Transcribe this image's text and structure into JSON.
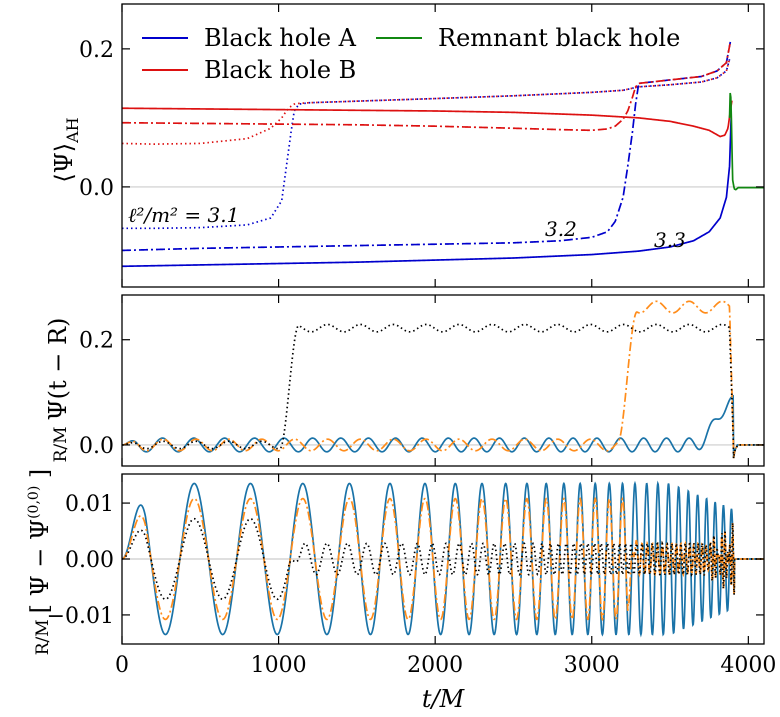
{
  "chart_data": [
    {
      "panel": "top",
      "type": "line",
      "ylabel": "⟨Ψ⟩_AH",
      "ylim": [
        -0.145,
        0.265
      ],
      "xlim": [
        0,
        4100
      ],
      "yticks": [
        0.0,
        0.2
      ],
      "ytick_labels": [
        "0.0",
        "0.2"
      ],
      "legend": {
        "placement": "top-left",
        "entries": [
          {
            "name": "Black hole A",
            "color": "#0000cc"
          },
          {
            "name": "Black hole B",
            "color": "#dd1111"
          },
          {
            "name": "Remnant black hole",
            "color": "#118811"
          }
        ]
      },
      "annotations": [
        "ℓ²/m² = 3.1",
        "3.2",
        "3.3"
      ],
      "series": [
        {
          "name": "A, ℓ²/m²=3.1",
          "style": "dotted",
          "color": "#0000cc",
          "x": [
            0,
            200,
            500,
            800,
            950,
            1020,
            1050,
            1080,
            1100,
            1130,
            1200,
            1600,
            2000,
            2500,
            3000,
            3200,
            3300,
            3500,
            3700,
            3800,
            3860,
            3880
          ],
          "y": [
            -0.06,
            -0.06,
            -0.059,
            -0.055,
            -0.045,
            -0.02,
            0.03,
            0.08,
            0.11,
            0.12,
            0.122,
            0.125,
            0.128,
            0.132,
            0.137,
            0.14,
            0.145,
            0.148,
            0.152,
            0.158,
            0.168,
            0.185
          ]
        },
        {
          "name": "B, ℓ²/m²=3.1",
          "style": "dotted",
          "color": "#dd1111",
          "x": [
            0,
            200,
            500,
            800,
            950,
            1020,
            1050,
            1080,
            1100,
            1130,
            1200,
            1600,
            2000,
            2500,
            3000,
            3200,
            3300,
            3500,
            3700,
            3800,
            3860,
            3880
          ],
          "y": [
            0.063,
            0.062,
            0.063,
            0.07,
            0.085,
            0.1,
            0.11,
            0.117,
            0.12,
            0.121,
            0.122,
            0.125,
            0.128,
            0.132,
            0.137,
            0.14,
            0.145,
            0.148,
            0.152,
            0.158,
            0.168,
            0.185
          ]
        },
        {
          "name": "A, ℓ²/m²=3.2",
          "style": "dashdot",
          "color": "#0000cc",
          "x": [
            0,
            500,
            1000,
            1500,
            2000,
            2500,
            2800,
            3000,
            3100,
            3150,
            3200,
            3230,
            3260,
            3280,
            3300,
            3500,
            3700,
            3800,
            3860,
            3885
          ],
          "y": [
            -0.092,
            -0.089,
            -0.087,
            -0.085,
            -0.083,
            -0.081,
            -0.078,
            -0.073,
            -0.065,
            -0.05,
            -0.015,
            0.03,
            0.08,
            0.12,
            0.15,
            0.155,
            0.16,
            0.168,
            0.18,
            0.21
          ]
        },
        {
          "name": "B, ℓ²/m²=3.2",
          "style": "dashdot",
          "color": "#dd1111",
          "x": [
            0,
            500,
            1000,
            1500,
            2000,
            2500,
            2800,
            3000,
            3100,
            3150,
            3200,
            3230,
            3260,
            3280,
            3300,
            3500,
            3700,
            3800,
            3860,
            3885
          ],
          "y": [
            0.093,
            0.092,
            0.091,
            0.09,
            0.088,
            0.085,
            0.083,
            0.082,
            0.084,
            0.088,
            0.098,
            0.11,
            0.13,
            0.145,
            0.15,
            0.155,
            0.16,
            0.168,
            0.18,
            0.21
          ]
        },
        {
          "name": "A, ℓ²/m²=3.3",
          "style": "solid",
          "color": "#0000cc",
          "x": [
            0,
            500,
            1000,
            1500,
            2000,
            2500,
            3000,
            3300,
            3500,
            3650,
            3750,
            3820,
            3860,
            3880,
            3890
          ],
          "y": [
            -0.115,
            -0.113,
            -0.111,
            -0.109,
            -0.106,
            -0.103,
            -0.098,
            -0.093,
            -0.087,
            -0.078,
            -0.065,
            -0.045,
            -0.015,
            0.03,
            0.1
          ]
        },
        {
          "name": "B, ℓ²/m²=3.3",
          "style": "solid",
          "color": "#dd1111",
          "x": [
            0,
            500,
            1000,
            1500,
            2000,
            2500,
            3000,
            3300,
            3500,
            3650,
            3750,
            3820,
            3850,
            3870,
            3885,
            3895
          ],
          "y": [
            0.114,
            0.113,
            0.112,
            0.111,
            0.11,
            0.108,
            0.104,
            0.1,
            0.095,
            0.088,
            0.082,
            0.073,
            0.075,
            0.085,
            0.11,
            0.125
          ]
        },
        {
          "name": "Remnant",
          "style": "solid",
          "color": "#118811",
          "x": [
            3880,
            3885,
            3890,
            3895,
            3900,
            3910,
            3920,
            3935,
            3950,
            4000,
            4100
          ],
          "y": [
            0.1,
            0.145,
            0.12,
            0.06,
            0.01,
            -0.003,
            -0.004,
            -0.001,
            -0.001,
            -0.001,
            -0.001
          ]
        }
      ]
    },
    {
      "panel": "middle",
      "type": "line",
      "ylabel": "(R/M) Ψ(t − R)",
      "ylim": [
        -0.04,
        0.285
      ],
      "xlim": [
        0,
        4100
      ],
      "yticks": [
        0.0,
        0.2
      ],
      "ytick_labels": [
        "0.0",
        "0.2"
      ],
      "series": [
        {
          "name": "ℓ²/m²=3.3",
          "style": "solid",
          "color": "#1a73a8",
          "kind": "osc",
          "amp": 0.013,
          "period": 210,
          "ramp_start": 3600,
          "ramp_amp": 0.08
        },
        {
          "name": "ℓ²/m²=3.2",
          "style": "dashdot",
          "color": "#ff8c1a",
          "kind": "osc_step",
          "amp": 0.011,
          "period": 210,
          "step_time": 3230,
          "step_level": 0.262
        },
        {
          "name": "ℓ²/m²=3.1",
          "style": "dotted",
          "color": "#000000",
          "kind": "osc_step",
          "amp": 0.007,
          "period": 210,
          "step_time": 1070,
          "step_level": 0.222
        }
      ]
    },
    {
      "panel": "bottom",
      "type": "line",
      "ylabel": "(R/M) [Ψ − Ψ^(0,0)]",
      "xlabel": "t/M",
      "ylim": [
        -0.0152,
        0.0152
      ],
      "xlim": [
        0,
        4100
      ],
      "xticks": [
        0,
        1000,
        2000,
        3000,
        4000
      ],
      "xtick_labels": [
        "0",
        "1000",
        "2000",
        "3000",
        "4000"
      ],
      "yticks": [
        -0.01,
        0.0,
        0.01
      ],
      "ytick_labels": [
        "−0.01",
        "0.00",
        "0.01"
      ],
      "series": [
        {
          "name": "ℓ²/m²=3.3",
          "style": "solid",
          "color": "#1a73a8",
          "amp": 0.0135,
          "period": 370
        },
        {
          "name": "ℓ²/m²=3.2",
          "style": "dashdot",
          "color": "#ff8c1a",
          "amp": 0.0108,
          "period": 370,
          "break_time": 3230
        },
        {
          "name": "ℓ²/m²=3.1",
          "style": "dotted",
          "color": "#000000",
          "amp": 0.0072,
          "period": 370,
          "break_time": 1070
        }
      ]
    }
  ]
}
